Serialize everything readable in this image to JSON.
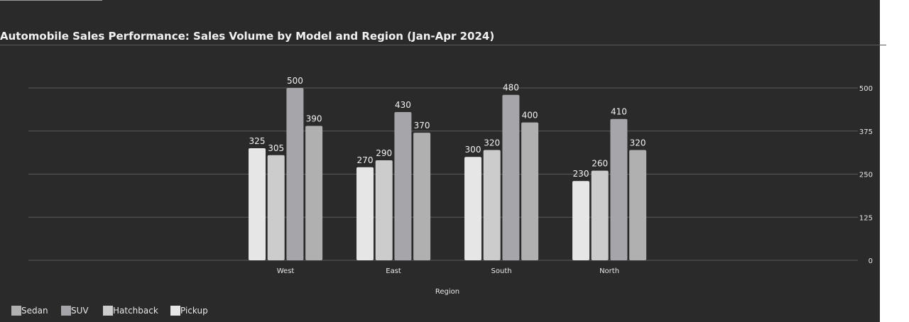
{
  "title": "Automobile Sales Performance: Sales Volume by Model and Region (Jan-Apr 2024)",
  "chart_data": {
    "type": "bar",
    "title": "Automobile Sales Performance: Sales Volume by Model and Region (Jan-Apr 2024)",
    "xlabel": "Region",
    "ylabel": "",
    "categories": [
      "West",
      "East",
      "South",
      "North"
    ],
    "ylim": [
      0,
      500
    ],
    "yticks": [
      0,
      125,
      250,
      375,
      500
    ],
    "grid": true,
    "legend_position": "bottom-left",
    "series": [
      {
        "name": "Pickup",
        "color": "#e6e6e6",
        "values": [
          325,
          270,
          300,
          230
        ]
      },
      {
        "name": "Hatchback",
        "color": "#cccccc",
        "values": [
          305,
          290,
          320,
          260
        ]
      },
      {
        "name": "SUV",
        "color": "#a6a6aa",
        "values": [
          500,
          430,
          480,
          410
        ]
      },
      {
        "name": "Sedan",
        "color": "#b0b0b0",
        "values": [
          390,
          370,
          400,
          320
        ]
      }
    ],
    "legend": [
      {
        "name": "Sedan",
        "color": "#b0b0b0"
      },
      {
        "name": "SUV",
        "color": "#a6a6aa"
      },
      {
        "name": "Hatchback",
        "color": "#cccccc"
      },
      {
        "name": "Pickup",
        "color": "#e6e6e6"
      }
    ]
  }
}
